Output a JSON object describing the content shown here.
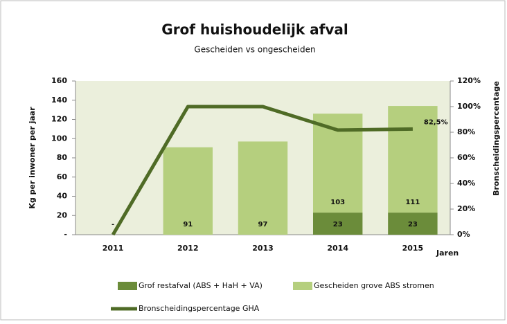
{
  "chart_data": {
    "type": "bar",
    "stacked": true,
    "title": "Grof huishoudelijk afval",
    "subtitle": "Gescheiden vs ongescheiden",
    "y_label": "Kg per inwoner per jaar",
    "y2_label": "Bronscheidingspercentage",
    "x_label": "Jaren",
    "categories": [
      "2011",
      "2012",
      "2013",
      "2014",
      "2015"
    ],
    "series": [
      {
        "name": "Grof restafval (ABS + HaH + VA)",
        "color": "#6b8c3a",
        "values": [
          0,
          0,
          0,
          23,
          23
        ],
        "value_labels": [
          null,
          null,
          null,
          "23",
          "23"
        ]
      },
      {
        "name": "Gescheiden grove ABS stromen",
        "color": "#b5cf7e",
        "values": [
          0,
          91,
          97,
          103,
          111
        ],
        "value_labels": [
          "-",
          "91",
          "97",
          "103",
          "111"
        ]
      },
      {
        "name": "Bronscheidingspercentage GHA",
        "type": "line",
        "axis": "y2",
        "color": "#4f6b26",
        "values": [
          0,
          100,
          100,
          81.7,
          82.5
        ],
        "value_labels": [
          null,
          null,
          null,
          null,
          "82,5%"
        ]
      }
    ],
    "ylim": [
      0,
      160
    ],
    "yticks": [
      {
        "value": 0,
        "label": "-"
      },
      20,
      40,
      60,
      80,
      100,
      120,
      140,
      160
    ],
    "y2lim": [
      0,
      120
    ],
    "y2ticks": [
      {
        "value": 0,
        "label": "0%"
      },
      {
        "value": 20,
        "label": "20%"
      },
      {
        "value": 40,
        "label": "40%"
      },
      {
        "value": 60,
        "label": "60%"
      },
      {
        "value": 80,
        "label": "80%"
      },
      {
        "value": 100,
        "label": "100%"
      },
      {
        "value": 120,
        "label": "120%"
      }
    ],
    "grid": false
  }
}
